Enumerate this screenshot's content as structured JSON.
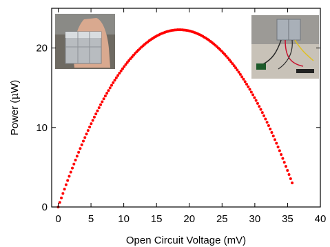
{
  "chart_data": {
    "type": "scatter",
    "title": "",
    "xlabel": "Open Circuit Voltage (mV)",
    "ylabel_parts": [
      "Power (",
      "μ",
      "W)"
    ],
    "xlim": [
      -1,
      40
    ],
    "ylim": [
      0,
      25
    ],
    "x_ticks": [
      0,
      5,
      10,
      15,
      20,
      25,
      30,
      35,
      40
    ],
    "y_ticks": [
      0,
      10,
      20
    ],
    "grid": false,
    "legend": "none",
    "marker_color": "#ff0000",
    "series": [
      {
        "curve": "parabola",
        "x_start": 0,
        "x_end": 35.7,
        "x_peak": 18.5,
        "y_peak": 22.3,
        "y_at_start": 0,
        "num_points": 150
      }
    ],
    "insets": [
      {
        "icon": "photo-hand-holding-device",
        "position": "top-left"
      },
      {
        "icon": "photo-device-with-wires",
        "position": "top-right"
      }
    ]
  }
}
